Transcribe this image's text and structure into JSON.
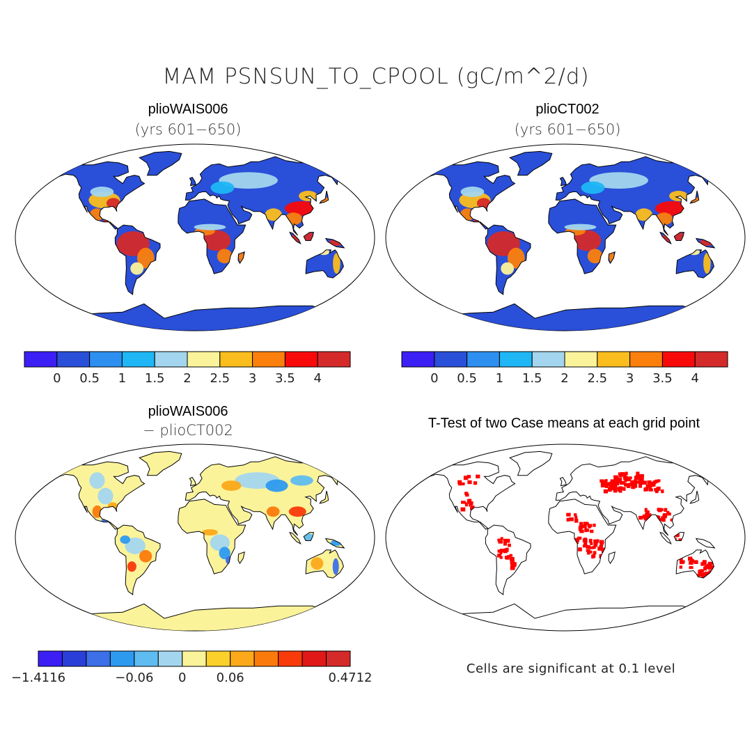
{
  "figure": {
    "title": "MAM PSNSUN_TO_CPOOL (gC/m^2/d)"
  },
  "panels": {
    "top_left": {
      "title": "plioWAIS006",
      "subtitle": "(yrs 601−650)"
    },
    "top_right": {
      "title": "plioCT002",
      "subtitle": "(yrs 601−650)"
    },
    "bottom_left": {
      "title": "plioWAIS006",
      "subtitle": "− plioCT002"
    },
    "bottom_right": {
      "title": "T-Test of two Case means at each grid point",
      "note": "Cells are significant at 0.1 level"
    }
  },
  "colorbars": {
    "field": {
      "colors": [
        "#3b1ff5",
        "#2a4fd8",
        "#2d8ff0",
        "#1eb6f5",
        "#a3d6ee",
        "#fbf39a",
        "#fbbd1d",
        "#fb7f0c",
        "#f90a0a",
        "#d42a2a"
      ],
      "labels": [
        "0",
        "0.5",
        "1",
        "1.5",
        "2",
        "2.5",
        "3",
        "3.5",
        "4"
      ]
    },
    "field_b": {
      "colors": [
        "#3b1ff5",
        "#2a4fd8",
        "#2d8ff0",
        "#1eb6f5",
        "#a3d6ee",
        "#fbf39a",
        "#fbbd1d",
        "#fb7f0c",
        "#f90a0a",
        "#d42a2a"
      ],
      "labels": [
        "0",
        "0.5",
        "1",
        "1.5",
        "2",
        "2.5",
        "3",
        "3.5",
        "4"
      ]
    },
    "difference": {
      "colors": [
        "#3b1ff5",
        "#2a3fd8",
        "#3c6fe8",
        "#2d9af0",
        "#5fbcf0",
        "#a3d6ee",
        "#fbf39a",
        "#fbd02a",
        "#fba91a",
        "#fb7a0c",
        "#f93a0a",
        "#e01818",
        "#d42a2a"
      ],
      "labels": [
        "−1.4116",
        "−0.06",
        "0",
        "0.06",
        "0.4712"
      ]
    }
  },
  "map_colors": {
    "ocean": "#ffffff",
    "coast": "#000000",
    "low": "#2a4fd8",
    "mid": "#a3d6ee",
    "high": "#d42a2a",
    "diff_base": "#fbf39a",
    "signif": "#ff0000"
  }
}
